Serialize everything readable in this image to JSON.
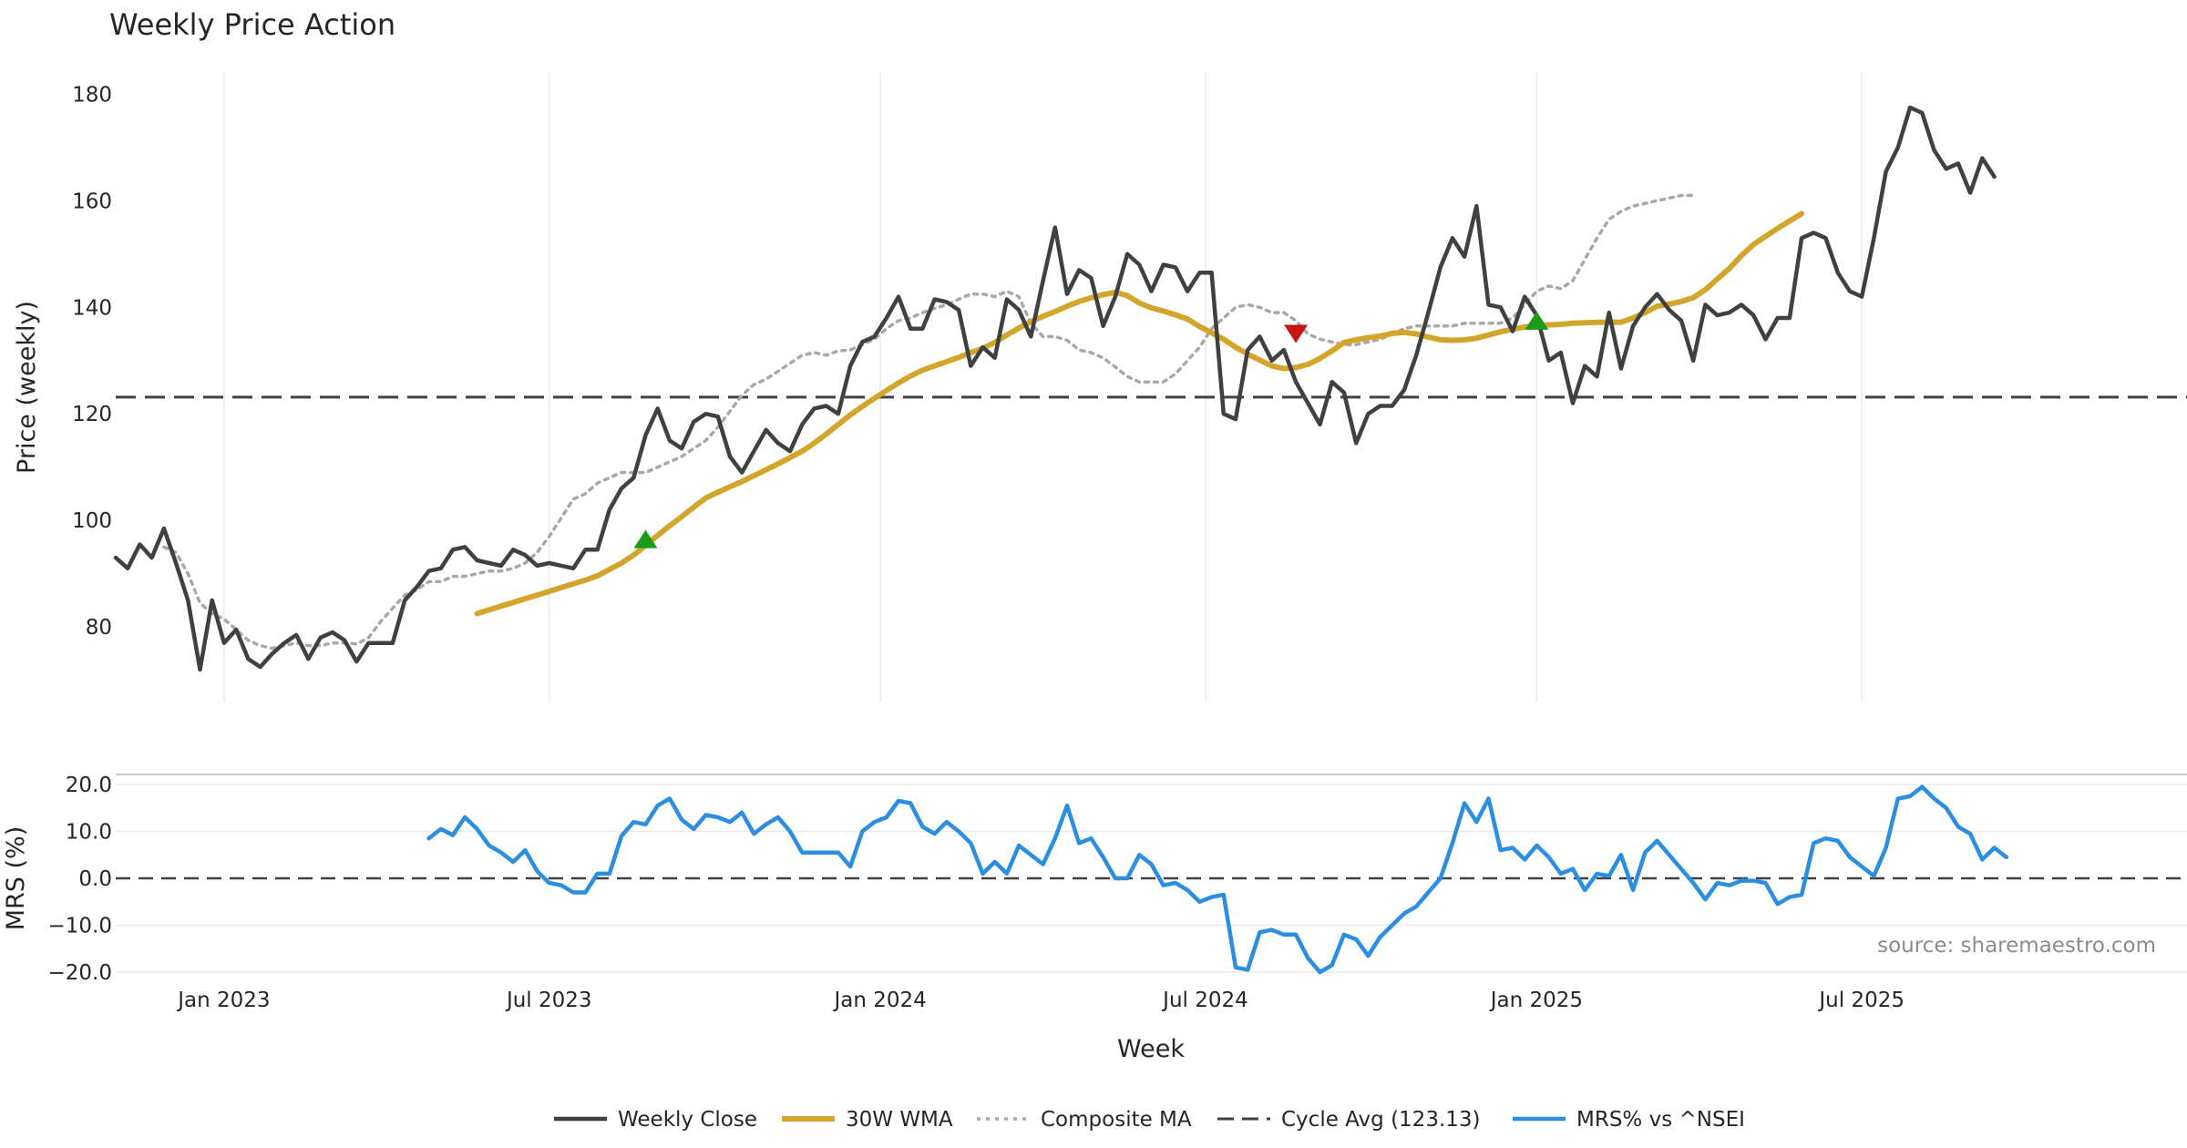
{
  "chart_data": [
    {
      "type": "line",
      "title": "Weekly Price Action",
      "ylabel": "Price (weekly)",
      "xlabel": "",
      "ylim": [
        66,
        184
      ],
      "yticks": [
        80,
        100,
        120,
        140,
        160,
        180
      ],
      "x_week_range": [
        0,
        172
      ],
      "cycle_avg": 123.13,
      "series": [
        {
          "name": "Weekly Close",
          "color": "#404040",
          "values": [
            93,
            91,
            95.5,
            93,
            98.5,
            92,
            85,
            72,
            85,
            77,
            79.5,
            74,
            72.5,
            75,
            77,
            78.5,
            74,
            78,
            79,
            77.5,
            73.5,
            77,
            77,
            77,
            85,
            87.5,
            90.5,
            91,
            94.5,
            95,
            92.5,
            92,
            91.5,
            94.5,
            93.5,
            91.5,
            92,
            91.5,
            91,
            94.5,
            94.5,
            102,
            106,
            108,
            116,
            121,
            115,
            113.5,
            118.5,
            120,
            119.5,
            112,
            109,
            113,
            117,
            114.5,
            113,
            118,
            121,
            121.5,
            120,
            129,
            133.5,
            134.5,
            138,
            142,
            136,
            136,
            141.5,
            141,
            139.5,
            129,
            132.5,
            130.5,
            141.5,
            139.5,
            134.5,
            145,
            155,
            142.5,
            147,
            145.5,
            136.5,
            142,
            150,
            148,
            143,
            148,
            147.5,
            143,
            146.5,
            146.5,
            120,
            119,
            132,
            134.5,
            130,
            132,
            126,
            122,
            118,
            126,
            124,
            114.5,
            120,
            121.5,
            121.5,
            124.5,
            131,
            139,
            147.5,
            153,
            149.5,
            159,
            140.5,
            140,
            135.5,
            142,
            138.5,
            130,
            131.5,
            122,
            129,
            127,
            139,
            128.5,
            136.5,
            140,
            142.5,
            139.5,
            137.5,
            130,
            140.5,
            138.5,
            139,
            140.5,
            138.5,
            134,
            138,
            138,
            153,
            154,
            153,
            146.5,
            143,
            142,
            153,
            165.5,
            170,
            177.5,
            176.5,
            169.5,
            166,
            167,
            161.5,
            168,
            164.5
          ]
        },
        {
          "name": "30W WMA",
          "color": "#d4a52b",
          "start_index": 30,
          "values": [
            82.5,
            83.2,
            83.9,
            84.6,
            85.3,
            86,
            86.7,
            87.4,
            88.1,
            88.8,
            89.6,
            90.8,
            92,
            93.5,
            95.3,
            97.2,
            99,
            100.7,
            102.5,
            104.2,
            105.3,
            106.3,
            107.3,
            108.4,
            109.5,
            110.6,
            111.8,
            113,
            114.5,
            116.2,
            118,
            119.8,
            121.4,
            122.9,
            124.4,
            125.8,
            127.1,
            128.2,
            129,
            129.8,
            130.6,
            131.5,
            132.3,
            133.4,
            134.8,
            136.1,
            137.3,
            138.3,
            139.2,
            140.2,
            141.1,
            141.8,
            142.4,
            142.8,
            142.2,
            140.8,
            139.9,
            139.3,
            138.6,
            137.8,
            136.4,
            135.2,
            134,
            132.5,
            131.2,
            130.1,
            129,
            128.5,
            128.7,
            129.3,
            130.4,
            131.8,
            133.4,
            133.9,
            134.3,
            134.6,
            135.1,
            135.3,
            135,
            134.4,
            133.9,
            133.8,
            133.9,
            134.2,
            134.8,
            135.4,
            135.9,
            136.3,
            136.5,
            136.7,
            136.8,
            137,
            137.1,
            137.2,
            137.2,
            137.2,
            138,
            139,
            140.2,
            140.6,
            141.1,
            141.8,
            143.3,
            145.3,
            147.3,
            149.7,
            151.8,
            153.3,
            154.8,
            156.2,
            157.6
          ]
        },
        {
          "name": "Composite MA",
          "color": "#a9a9a9",
          "start_index": 4,
          "values": [
            95,
            94,
            90,
            84.5,
            82.5,
            81.5,
            79.5,
            77.5,
            76.5,
            76,
            76.5,
            77,
            76.5,
            76.5,
            77,
            77,
            76.8,
            78,
            81,
            83.5,
            86,
            87,
            88.5,
            88.5,
            89.5,
            89.5,
            90,
            90.5,
            90.5,
            91,
            92,
            94,
            97,
            100.5,
            104,
            105,
            107,
            108,
            109,
            109,
            109,
            110,
            111,
            112,
            113.5,
            115,
            117.5,
            120.5,
            123.5,
            125.5,
            126.5,
            128,
            129.5,
            131,
            131.5,
            131,
            131.8,
            132,
            133,
            134,
            136,
            137.5,
            138,
            139,
            139.8,
            140.5,
            141.5,
            142.5,
            142.5,
            142,
            143,
            142,
            137,
            134.5,
            134.5,
            133.8,
            132,
            131.5,
            130.5,
            128.8,
            127,
            126,
            126,
            126,
            127.5,
            130,
            132.5,
            136,
            138,
            140,
            140.5,
            140,
            139,
            139,
            137.5,
            135,
            134,
            133.5,
            133,
            133,
            133.5,
            134,
            135,
            136,
            136.5,
            136.5,
            136.5,
            136.5,
            137,
            137,
            137,
            137,
            138,
            140.5,
            143,
            144,
            143.5,
            145,
            149,
            153,
            156.5,
            158,
            159,
            159.5,
            160,
            160.5,
            161,
            161
          ]
        }
      ],
      "signals": [
        {
          "type": "buy",
          "week": 44,
          "value": 96.5,
          "color": "#1a9c1a"
        },
        {
          "type": "sell",
          "week": 98,
          "value": 135,
          "color": "#c81414"
        },
        {
          "type": "buy",
          "week": 118,
          "value": 137.5,
          "color": "#1a9c1a"
        }
      ]
    },
    {
      "type": "line",
      "title": "",
      "ylabel": "MRS (%)",
      "xlabel": "Week",
      "ylim": [
        -20,
        20
      ],
      "yticks": [
        20,
        10,
        0,
        -10,
        -20
      ],
      "ytick_labels": [
        "20.0",
        "10.0",
        "0.0",
        "−10.0",
        "−20.0"
      ],
      "xticks": [
        {
          "label": "Jan 2023",
          "week": 9
        },
        {
          "label": "Jul 2023",
          "week": 36
        },
        {
          "label": "Jan 2024",
          "week": 63.5
        },
        {
          "label": "Jul 2024",
          "week": 90.5
        },
        {
          "label": "Jan 2025",
          "week": 118
        },
        {
          "label": "Jul 2025",
          "week": 145
        }
      ],
      "series": [
        {
          "name": "MRS% vs ^NSEI",
          "color": "#2b8ee0",
          "start_index": 26,
          "values": [
            8.5,
            10.5,
            9.2,
            13,
            10.5,
            7,
            5.5,
            3.5,
            6,
            1.5,
            -1,
            -1.5,
            -3,
            -3,
            1,
            1,
            9,
            12,
            11.5,
            15.5,
            17,
            12.5,
            10.5,
            13.5,
            13,
            12,
            14,
            9.5,
            11.5,
            13,
            10,
            5.5,
            5.5,
            5.5,
            5.5,
            2.5,
            10,
            12,
            13,
            16.5,
            16,
            11,
            9.5,
            12,
            10,
            7.5,
            1,
            3.5,
            1,
            7,
            5,
            3,
            8.5,
            15.5,
            7.5,
            8.5,
            4.5,
            0,
            0,
            5,
            3,
            -1.5,
            -1,
            -2.5,
            -5,
            -4,
            -3.5,
            -19,
            -19.5,
            -11.5,
            -11,
            -12,
            -12,
            -17,
            -20,
            -18.5,
            -12,
            -13,
            -16.5,
            -12.5,
            -10,
            -7.5,
            -6,
            -3,
            0,
            7.5,
            16,
            12,
            17,
            6,
            6.5,
            4,
            7,
            4.5,
            1,
            2,
            -2.5,
            1,
            0.5,
            5,
            -2.5,
            5.5,
            8,
            5,
            2,
            -1,
            -4.5,
            -1,
            -1.5,
            -0.5,
            -0.5,
            -1,
            -5.5,
            -4,
            -3.5,
            7.5,
            8.5,
            8,
            4.5,
            2.5,
            0.5,
            6.5,
            17,
            17.5,
            19.5,
            17,
            15,
            11,
            9.5,
            4,
            6.5,
            4.5
          ]
        }
      ],
      "source": "source: sharemaestro.com"
    }
  ],
  "legend": [
    {
      "label": "Weekly Close",
      "color": "#404040",
      "style": "solid"
    },
    {
      "label": "30W WMA",
      "color": "#d4a52b",
      "style": "solid-thick"
    },
    {
      "label": "Composite MA",
      "color": "#a9a9a9",
      "style": "dotted"
    },
    {
      "label": "Cycle Avg (123.13)",
      "color": "#404040",
      "style": "dashed"
    },
    {
      "label": "MRS% vs ^NSEI",
      "color": "#2b8ee0",
      "style": "solid"
    }
  ]
}
